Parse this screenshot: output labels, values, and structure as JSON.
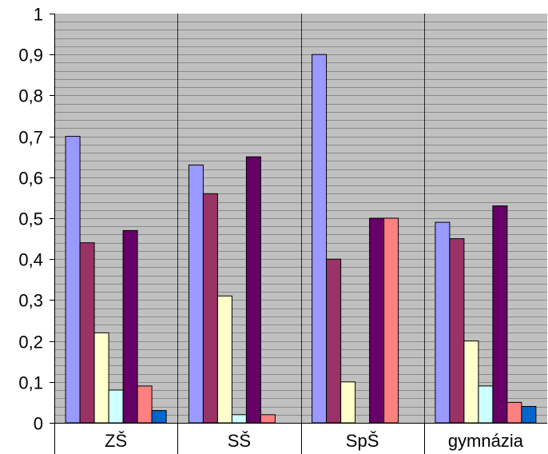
{
  "chart_data": {
    "type": "bar",
    "title": "",
    "xlabel": "",
    "ylabel": "",
    "categories": [
      "ZŠ",
      "SŠ",
      "SpŠ",
      "gymnázia"
    ],
    "y_tick_labels": [
      "0",
      "0,1",
      "0,2",
      "0,3",
      "0,4",
      "0,5",
      "0,6",
      "0,7",
      "0,8",
      "0,9",
      "1"
    ],
    "ylim": [
      0,
      1
    ],
    "grid": true,
    "legend": "none",
    "plot_background": "#c0c0c0",
    "series": [
      {
        "color": "#9999ff",
        "values": [
          0.7,
          0.63,
          0.9,
          0.49
        ]
      },
      {
        "color": "#993366",
        "values": [
          0.44,
          0.56,
          0.4,
          0.45
        ]
      },
      {
        "color": "#ffffcc",
        "values": [
          0.22,
          0.31,
          0.1,
          0.2
        ]
      },
      {
        "color": "#ccffff",
        "values": [
          0.08,
          0.02,
          0.0,
          0.09
        ]
      },
      {
        "color": "#660066",
        "values": [
          0.47,
          0.65,
          0.5,
          0.53
        ]
      },
      {
        "color": "#ff8080",
        "values": [
          0.09,
          0.02,
          0.5,
          0.05
        ]
      },
      {
        "color": "#0066cc",
        "values": [
          0.03,
          0.0,
          0.0,
          0.04
        ]
      }
    ]
  }
}
